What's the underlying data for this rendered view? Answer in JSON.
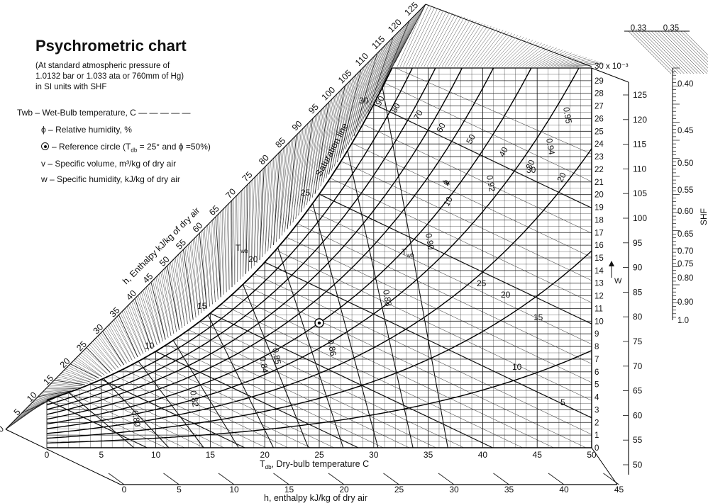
{
  "heading": {
    "title": "Psychrometric chart",
    "subtitle_lines": [
      "(At standard atmospheric pressure of",
      "1.0132 bar or 1.033 ata or 760mm of Hg)",
      "in SI units with SHF"
    ]
  },
  "legend": {
    "twb": "Twb – Wet-Bulb temperature, C",
    "phi": "ϕ – Relative humidity, %",
    "ref": "– Reference circle (T",
    "ref_sub": "db",
    "ref_tail": " = 25° and ϕ =50%)",
    "v": "v – Specific volume, m³/kg of dry air",
    "w": "w – Specific humidity, kJ/kg of dry air"
  },
  "chart_data": {
    "type": "psychrometric",
    "x_axis": {
      "label": "Tdb, Dry-bulb temperature C",
      "label_main": "T",
      "label_sub": "db",
      "label_rest": ", Dry-bulb temperature C",
      "range": [
        0,
        50
      ],
      "ticks": [
        "0",
        "5",
        "10",
        "15",
        "20",
        "25",
        "30",
        "35",
        "40",
        "45",
        "50"
      ]
    },
    "w_axis": {
      "label": "W",
      "range": [
        0,
        30
      ],
      "unit_label": "30 x 10⁻³",
      "ticks": [
        "0",
        "1",
        "2",
        "3",
        "4",
        "5",
        "6",
        "7",
        "8",
        "9",
        "10",
        "11",
        "12",
        "13",
        "14",
        "15",
        "16",
        "17",
        "18",
        "19",
        "20",
        "21",
        "22",
        "23",
        "24",
        "25",
        "26",
        "27",
        "28",
        "29"
      ]
    },
    "bottom_enthalpy_axis": {
      "label": "h, enthalpy kJ/kg of dry air",
      "ticks": [
        "0",
        "5",
        "10",
        "15",
        "20",
        "25",
        "30",
        "35",
        "40",
        "45"
      ]
    },
    "right_enthalpy_scale": {
      "ticks": [
        "50",
        "55",
        "60",
        "65",
        "70",
        "75",
        "80",
        "85",
        "90",
        "95",
        "100",
        "105",
        "110",
        "115",
        "120",
        "125"
      ]
    },
    "diagonal_enthalpy_scale": {
      "label": "h, Enthalpy kJ/kg of dry air",
      "ticks": [
        "0",
        "5",
        "10",
        "15",
        "20",
        "25",
        "30",
        "35",
        "40",
        "45",
        "50",
        "55",
        "60",
        "65",
        "70",
        "75",
        "80",
        "85",
        "90",
        "95",
        "100",
        "105",
        "110",
        "115",
        "120",
        "125"
      ]
    },
    "shf_scale": {
      "label": "SHF",
      "top_labels": [
        "0.33",
        "0.35"
      ],
      "ticks": [
        "0.40",
        "0.45",
        "0.50",
        "0.55",
        "0.60",
        "0.65",
        "0.70",
        "0.75",
        "0.80",
        "0.90",
        "1.0"
      ]
    },
    "rh_curves": [
      10,
      20,
      30,
      40,
      50,
      60,
      70,
      80,
      90,
      100
    ],
    "rh_labels": [
      "90",
      "80",
      "70",
      "60",
      "50",
      "40",
      "30",
      "20",
      "10",
      "ϕ"
    ],
    "wet_bulb_labels": [
      "5",
      "10",
      "15",
      "20",
      "25",
      "30"
    ],
    "wet_bulb_symbol": "T",
    "wet_bulb_sub": "wb",
    "left_wb_labels": [
      "10",
      "15",
      "20",
      "25",
      "30"
    ],
    "volume_labels": [
      "0.80",
      "0.82",
      "0.84",
      "0.85",
      "0.86",
      "0.88",
      "0.90",
      "0.92",
      "0.94",
      "0.95"
    ],
    "volume_symbol": "v",
    "saturation_label": "Saturation line",
    "reference_point": {
      "tdb": 25,
      "rh": 50
    }
  }
}
